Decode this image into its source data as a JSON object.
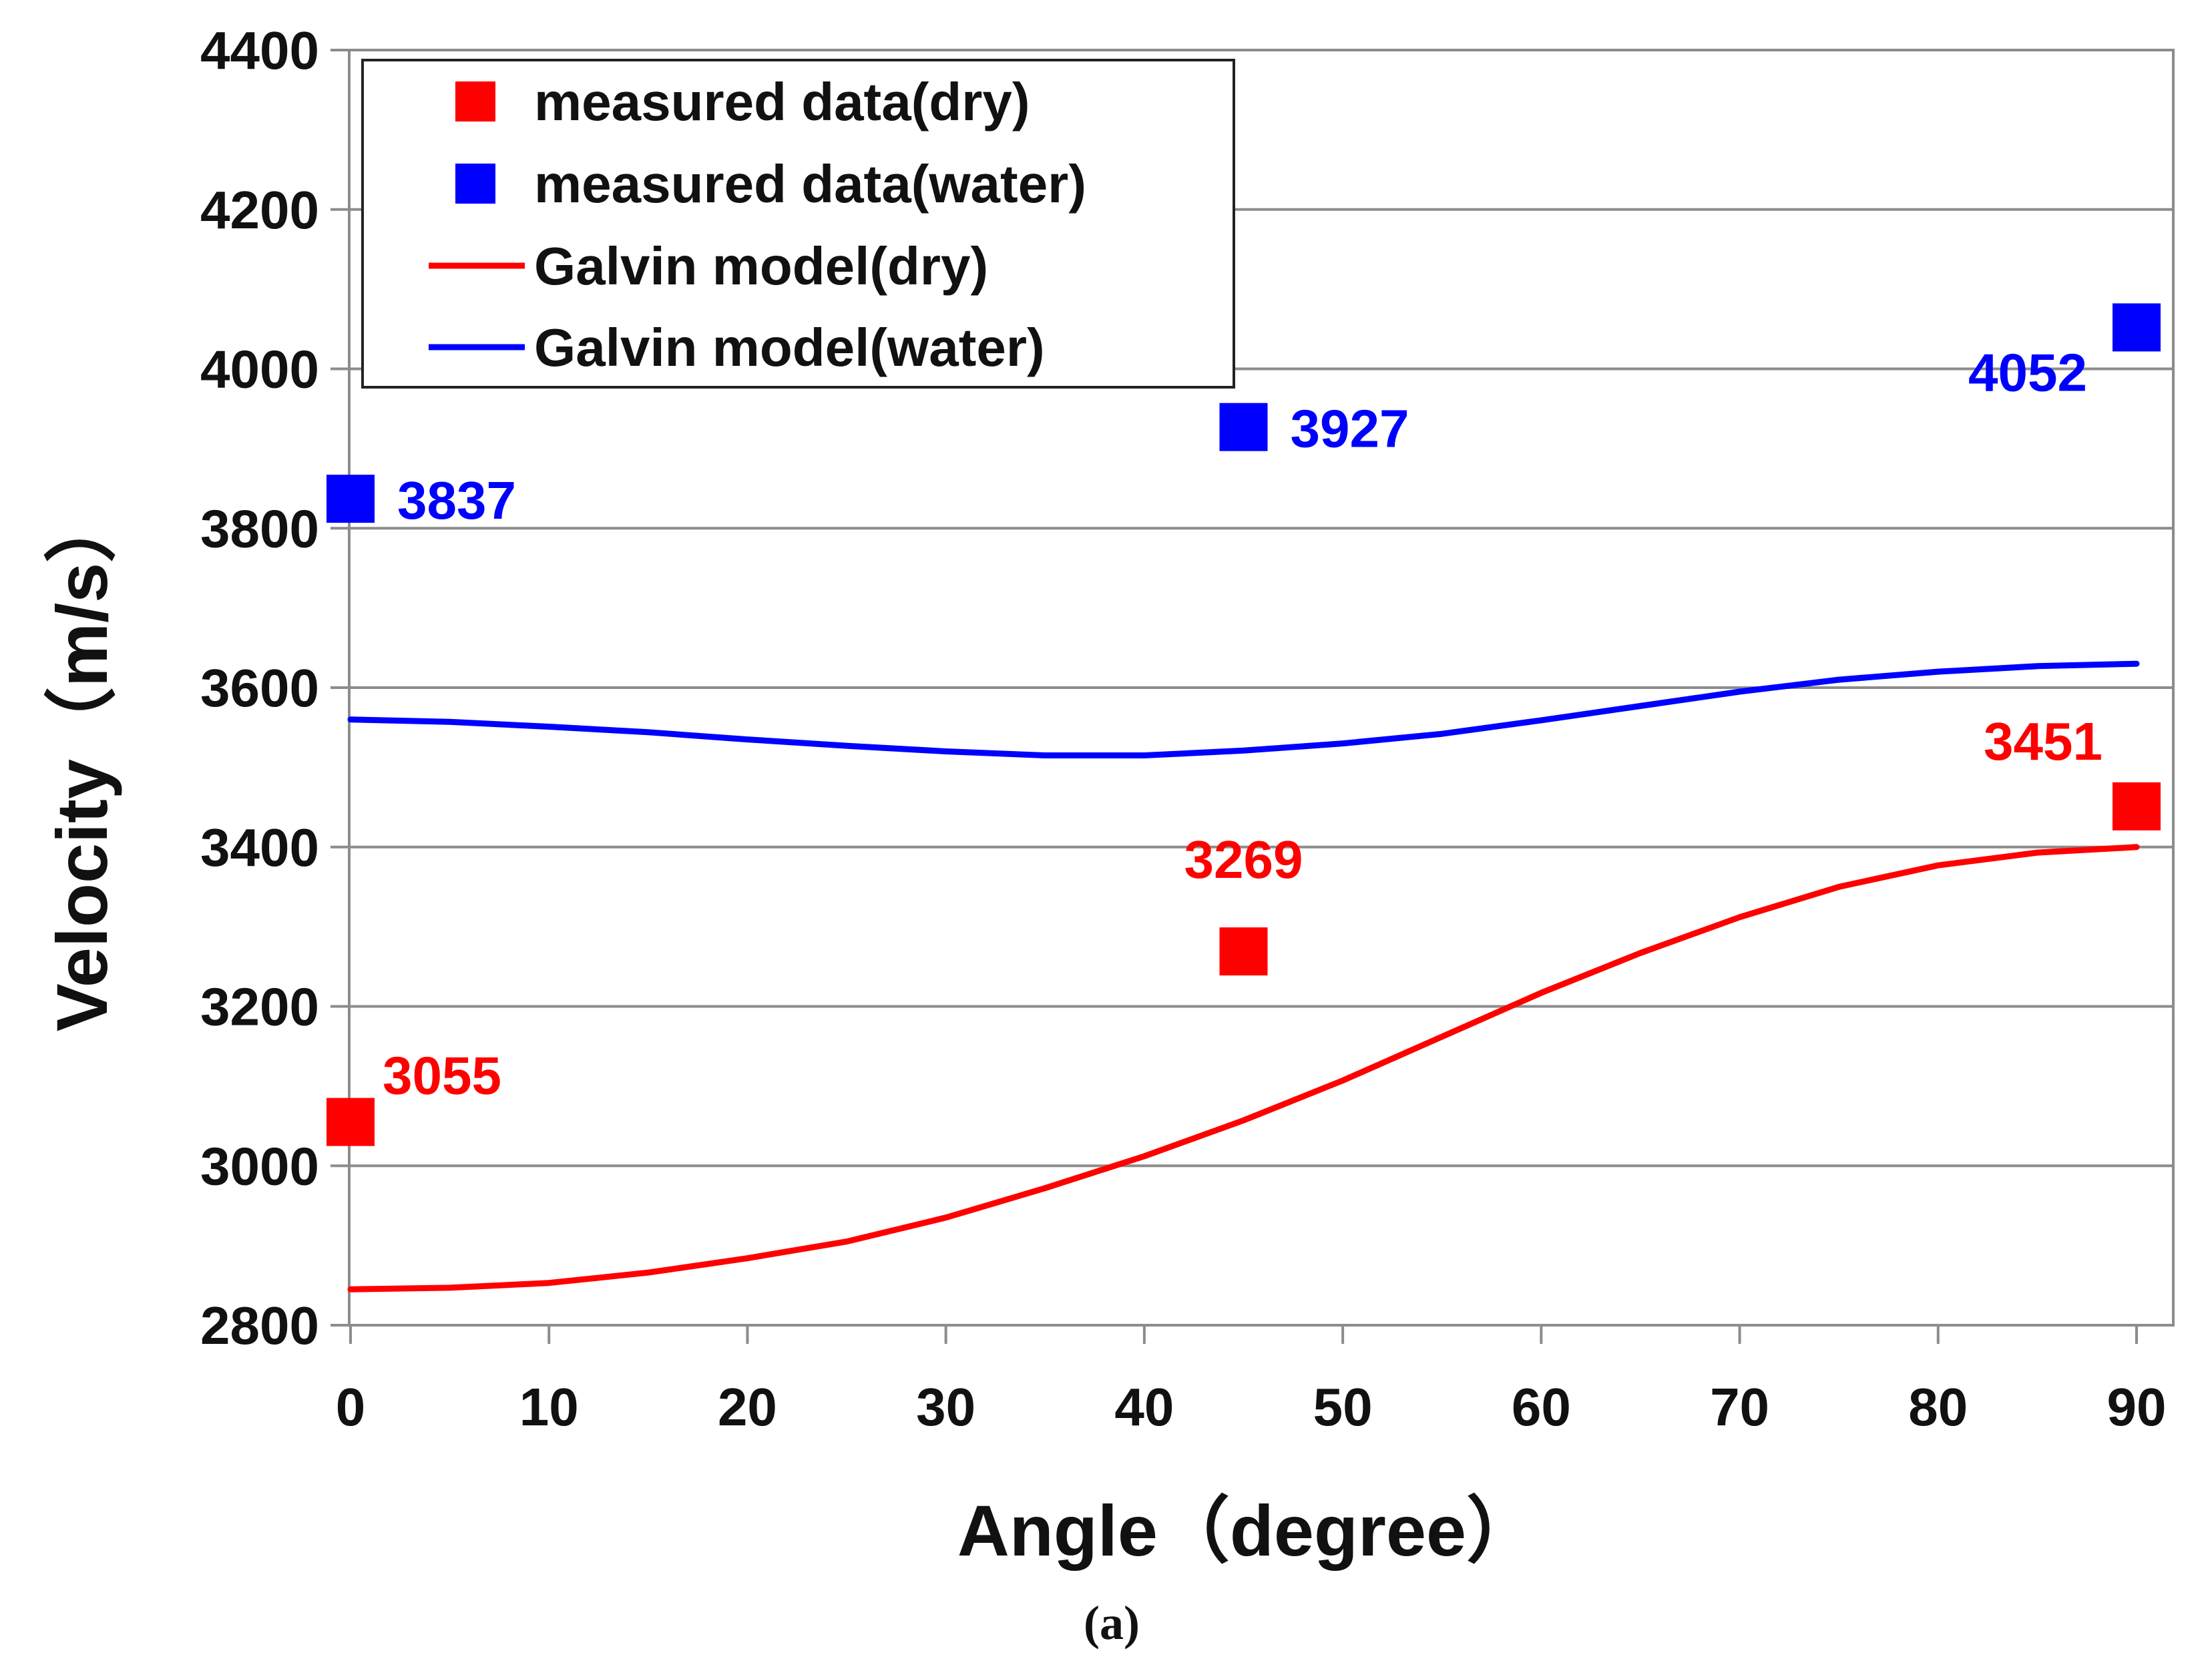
{
  "chart_data": {
    "type": "line",
    "xlabel": "Angle（degree）",
    "ylabel": "Velocity（m/s）",
    "caption": "(a)",
    "xlim": [
      0,
      90
    ],
    "ylim": [
      2800,
      4400
    ],
    "xticks": [
      0,
      10,
      20,
      30,
      40,
      50,
      60,
      70,
      80,
      90
    ],
    "yticks": [
      2800,
      3000,
      3200,
      3400,
      3600,
      3800,
      4000,
      4200,
      4400
    ],
    "grid": "horizontal",
    "legend_position": "top-left",
    "series": [
      {
        "name": "measured data(dry)",
        "kind": "scatter",
        "color": "#ff0000",
        "marker": "square",
        "x": [
          0,
          45,
          90
        ],
        "values": [
          3055,
          3269,
          3451
        ],
        "labels": [
          "3055",
          "3269",
          "3451"
        ]
      },
      {
        "name": "measured data(water)",
        "kind": "scatter",
        "color": "#0000ff",
        "marker": "square",
        "x": [
          0,
          45,
          90
        ],
        "values": [
          3837,
          3927,
          4052
        ],
        "labels": [
          "3837",
          "3927",
          "4052"
        ]
      },
      {
        "name": "Galvin model(dry)",
        "kind": "line",
        "color": "#ff0000",
        "x": [
          0,
          5,
          10,
          15,
          20,
          25,
          30,
          35,
          40,
          45,
          50,
          55,
          60,
          65,
          70,
          75,
          80,
          85,
          90
        ],
        "values": [
          2845,
          2847,
          2853,
          2866,
          2884,
          2905,
          2935,
          2972,
          3012,
          3057,
          3107,
          3162,
          3217,
          3267,
          3312,
          3350,
          3377,
          3393,
          3400
        ]
      },
      {
        "name": "Galvin model(water)",
        "kind": "line",
        "color": "#0000ff",
        "x": [
          0,
          5,
          10,
          15,
          20,
          25,
          30,
          35,
          40,
          45,
          50,
          55,
          60,
          65,
          70,
          75,
          80,
          85,
          90
        ],
        "values": [
          3560,
          3557,
          3551,
          3544,
          3535,
          3527,
          3520,
          3515,
          3515,
          3521,
          3530,
          3542,
          3559,
          3577,
          3595,
          3610,
          3620,
          3627,
          3630
        ]
      }
    ]
  }
}
